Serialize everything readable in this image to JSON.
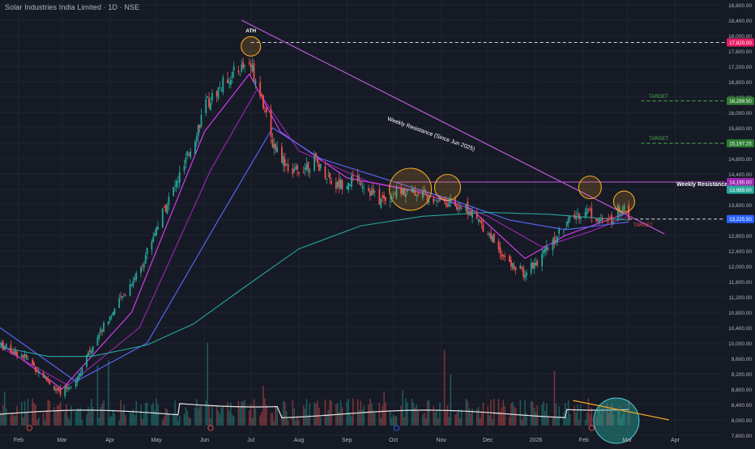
{
  "header": {
    "title": "Solar Industries India Limited · 1D · NSE"
  },
  "colors": {
    "background": "#161a25",
    "grid": "#1f2431",
    "candle_up": "#26a69a",
    "candle_down": "#ef5350",
    "ema_fast": "#e040fb",
    "ema_mid": "#9c27b0",
    "ema_slow": "#5b6cff",
    "ma_long": "#26a69a",
    "resistance_line": "#c158dc",
    "target_green": "#4caf50",
    "target_red": "#ef5350",
    "circle": "#f5a623"
  },
  "chart_data": {
    "type": "candlestick",
    "price_axis": {
      "ticks": [
        "18,800.00",
        "18,400.00",
        "18,000.00",
        "17,600.00",
        "17,200.00",
        "16,800.00",
        "16,400.00",
        "16,000.00",
        "15,600.00",
        "15,200.00",
        "14,800.00",
        "14,400.00",
        "14,000.00",
        "13,600.00",
        "13,200.00",
        "12,800.00",
        "12,400.00",
        "12,000.00",
        "11,600.00",
        "11,200.00",
        "10,800.00",
        "10,400.00",
        "10,000.00",
        "9,600.00",
        "9,200.00",
        "8,800.00",
        "8,400.00",
        "8,000.00",
        "7,600.00"
      ],
      "min": 7600,
      "max": 18800
    },
    "time_axis": {
      "labels": [
        "Feb",
        "Mar",
        "Apr",
        "May",
        "Jun",
        "Jul",
        "Aug",
        "Sep",
        "Oct",
        "Nov",
        "Dec",
        "2026",
        "Feb",
        "Mar",
        "Apr"
      ]
    },
    "price_tags": [
      {
        "value": 17820,
        "label": "17,820.00",
        "color": "#e91e63"
      },
      {
        "value": 16299.5,
        "label": "16,299.50",
        "color": "#2e7d32"
      },
      {
        "value": 15197.25,
        "label": "15,197.25",
        "color": "#2e7d32"
      },
      {
        "value": 14190,
        "label": "14,190.00",
        "color": "#9c27b0"
      },
      {
        "value": 13989,
        "label": "13,989.00",
        "color": "#26a69a"
      },
      {
        "value": 13225.5,
        "label": "13,225.50",
        "color": "#2962ff"
      }
    ],
    "levels": [
      {
        "name": "ath",
        "value": 17820,
        "style": "dashed",
        "color": "#d1d4dc"
      },
      {
        "name": "target-1",
        "value": 16299.5,
        "style": "dashed",
        "color": "#4caf50"
      },
      {
        "name": "target-2",
        "value": 15197.25,
        "style": "dashed",
        "color": "#4caf50"
      },
      {
        "name": "weekly-resistance",
        "value": 14190,
        "style": "solid",
        "color": "#c158dc"
      },
      {
        "name": "support-target",
        "value": 13225.5,
        "style": "dashed",
        "color": "#d1d4dc"
      }
    ],
    "annotations": {
      "ath": "ATH",
      "trendline": "Weekly Resistance (Since Jun 2025)",
      "weekly_resistance": "Weekly Resistance",
      "target": "TARGET"
    },
    "trendline": {
      "from": {
        "date": "2025-06-25",
        "value": 18400
      },
      "to": {
        "date": "2026-03-25",
        "value": 12840
      }
    },
    "close_path": [
      {
        "date": "2025-01-20",
        "value": 9950
      },
      {
        "date": "2025-02-03",
        "value": 9700
      },
      {
        "date": "2025-02-17",
        "value": 9150
      },
      {
        "date": "2025-02-28",
        "value": 8650
      },
      {
        "date": "2025-03-10",
        "value": 9050
      },
      {
        "date": "2025-03-24",
        "value": 10200
      },
      {
        "date": "2025-04-07",
        "value": 11050
      },
      {
        "date": "2025-04-21",
        "value": 12000
      },
      {
        "date": "2025-05-05",
        "value": 13400
      },
      {
        "date": "2025-05-19",
        "value": 14600
      },
      {
        "date": "2025-06-02",
        "value": 16200
      },
      {
        "date": "2025-06-16",
        "value": 16900
      },
      {
        "date": "2025-06-30",
        "value": 17300
      },
      {
        "date": "2025-07-07",
        "value": 16600
      },
      {
        "date": "2025-07-14",
        "value": 15300
      },
      {
        "date": "2025-07-28",
        "value": 14400
      },
      {
        "date": "2025-08-11",
        "value": 14750
      },
      {
        "date": "2025-08-25",
        "value": 14100
      },
      {
        "date": "2025-09-08",
        "value": 14300
      },
      {
        "date": "2025-09-22",
        "value": 13700
      },
      {
        "date": "2025-10-06",
        "value": 13950
      },
      {
        "date": "2025-10-20",
        "value": 13900
      },
      {
        "date": "2025-11-03",
        "value": 13700
      },
      {
        "date": "2025-11-17",
        "value": 13500
      },
      {
        "date": "2025-12-01",
        "value": 12900
      },
      {
        "date": "2025-12-15",
        "value": 12050
      },
      {
        "date": "2025-12-24",
        "value": 11850
      },
      {
        "date": "2026-01-05",
        "value": 12250
      },
      {
        "date": "2026-01-19",
        "value": 13050
      },
      {
        "date": "2026-02-02",
        "value": 13500
      },
      {
        "date": "2026-02-16",
        "value": 13100
      },
      {
        "date": "2026-02-27",
        "value": 13650
      },
      {
        "date": "2026-03-02",
        "value": 13300
      }
    ],
    "moving_averages": [
      {
        "name": "ema-fast",
        "color": "#e040fb",
        "points": [
          [
            "2025-01-20",
            10000
          ],
          [
            "2025-03-01",
            8800
          ],
          [
            "2025-04-15",
            10800
          ],
          [
            "2025-06-01",
            15500
          ],
          [
            "2025-06-30",
            17000
          ],
          [
            "2025-07-20",
            15500
          ],
          [
            "2025-09-01",
            14300
          ],
          [
            "2025-10-15",
            13950
          ],
          [
            "2025-11-20",
            13500
          ],
          [
            "2025-12-25",
            12200
          ],
          [
            "2026-01-20",
            12800
          ],
          [
            "2026-03-02",
            13400
          ]
        ]
      },
      {
        "name": "ema-mid",
        "color": "#9c27b0",
        "points": [
          [
            "2025-01-20",
            9900
          ],
          [
            "2025-03-05",
            8900
          ],
          [
            "2025-04-20",
            10400
          ],
          [
            "2025-06-05",
            14500
          ],
          [
            "2025-07-05",
            16600
          ],
          [
            "2025-08-01",
            15000
          ],
          [
            "2025-09-15",
            14200
          ],
          [
            "2025-10-25",
            13900
          ],
          [
            "2025-12-01",
            13300
          ],
          [
            "2026-01-05",
            12500
          ],
          [
            "2026-02-05",
            12900
          ],
          [
            "2026-03-02",
            13300
          ]
        ]
      },
      {
        "name": "ema-slow",
        "color": "#5b6cff",
        "points": [
          [
            "2025-01-20",
            10400
          ],
          [
            "2025-03-10",
            9000
          ],
          [
            "2025-04-25",
            10000
          ],
          [
            "2025-06-10",
            13200
          ],
          [
            "2025-07-15",
            15600
          ],
          [
            "2025-08-15",
            14800
          ],
          [
            "2025-10-01",
            14200
          ],
          [
            "2025-11-10",
            13700
          ],
          [
            "2025-12-15",
            13200
          ],
          [
            "2026-01-20",
            12950
          ],
          [
            "2026-03-02",
            13150
          ]
        ]
      },
      {
        "name": "ma-long",
        "color": "#26a69a",
        "points": [
          [
            "2025-01-20",
            9900
          ],
          [
            "2025-02-20",
            9650
          ],
          [
            "2025-03-20",
            9650
          ],
          [
            "2025-04-25",
            9950
          ],
          [
            "2025-05-25",
            10500
          ],
          [
            "2025-06-25",
            11400
          ],
          [
            "2025-08-01",
            12450
          ],
          [
            "2025-09-10",
            13050
          ],
          [
            "2025-10-20",
            13300
          ],
          [
            "2025-12-01",
            13400
          ],
          [
            "2026-01-10",
            13350
          ],
          [
            "2026-02-10",
            13250
          ],
          [
            "2026-03-02",
            13200
          ]
        ]
      }
    ],
    "volume": {
      "relative_max": 1.0
    },
    "circles": [
      {
        "date": "2025-07-01",
        "value": 17720,
        "label": "ath-circle"
      },
      {
        "date": "2025-10-12",
        "value": 14000,
        "label": "oct-circle"
      },
      {
        "date": "2025-11-05",
        "value": 14050,
        "label": "nov-circle"
      },
      {
        "date": "2026-02-05",
        "value": 14050,
        "label": "feb-circle"
      },
      {
        "date": "2026-02-27",
        "value": 13680,
        "label": "mar-circle"
      }
    ]
  }
}
